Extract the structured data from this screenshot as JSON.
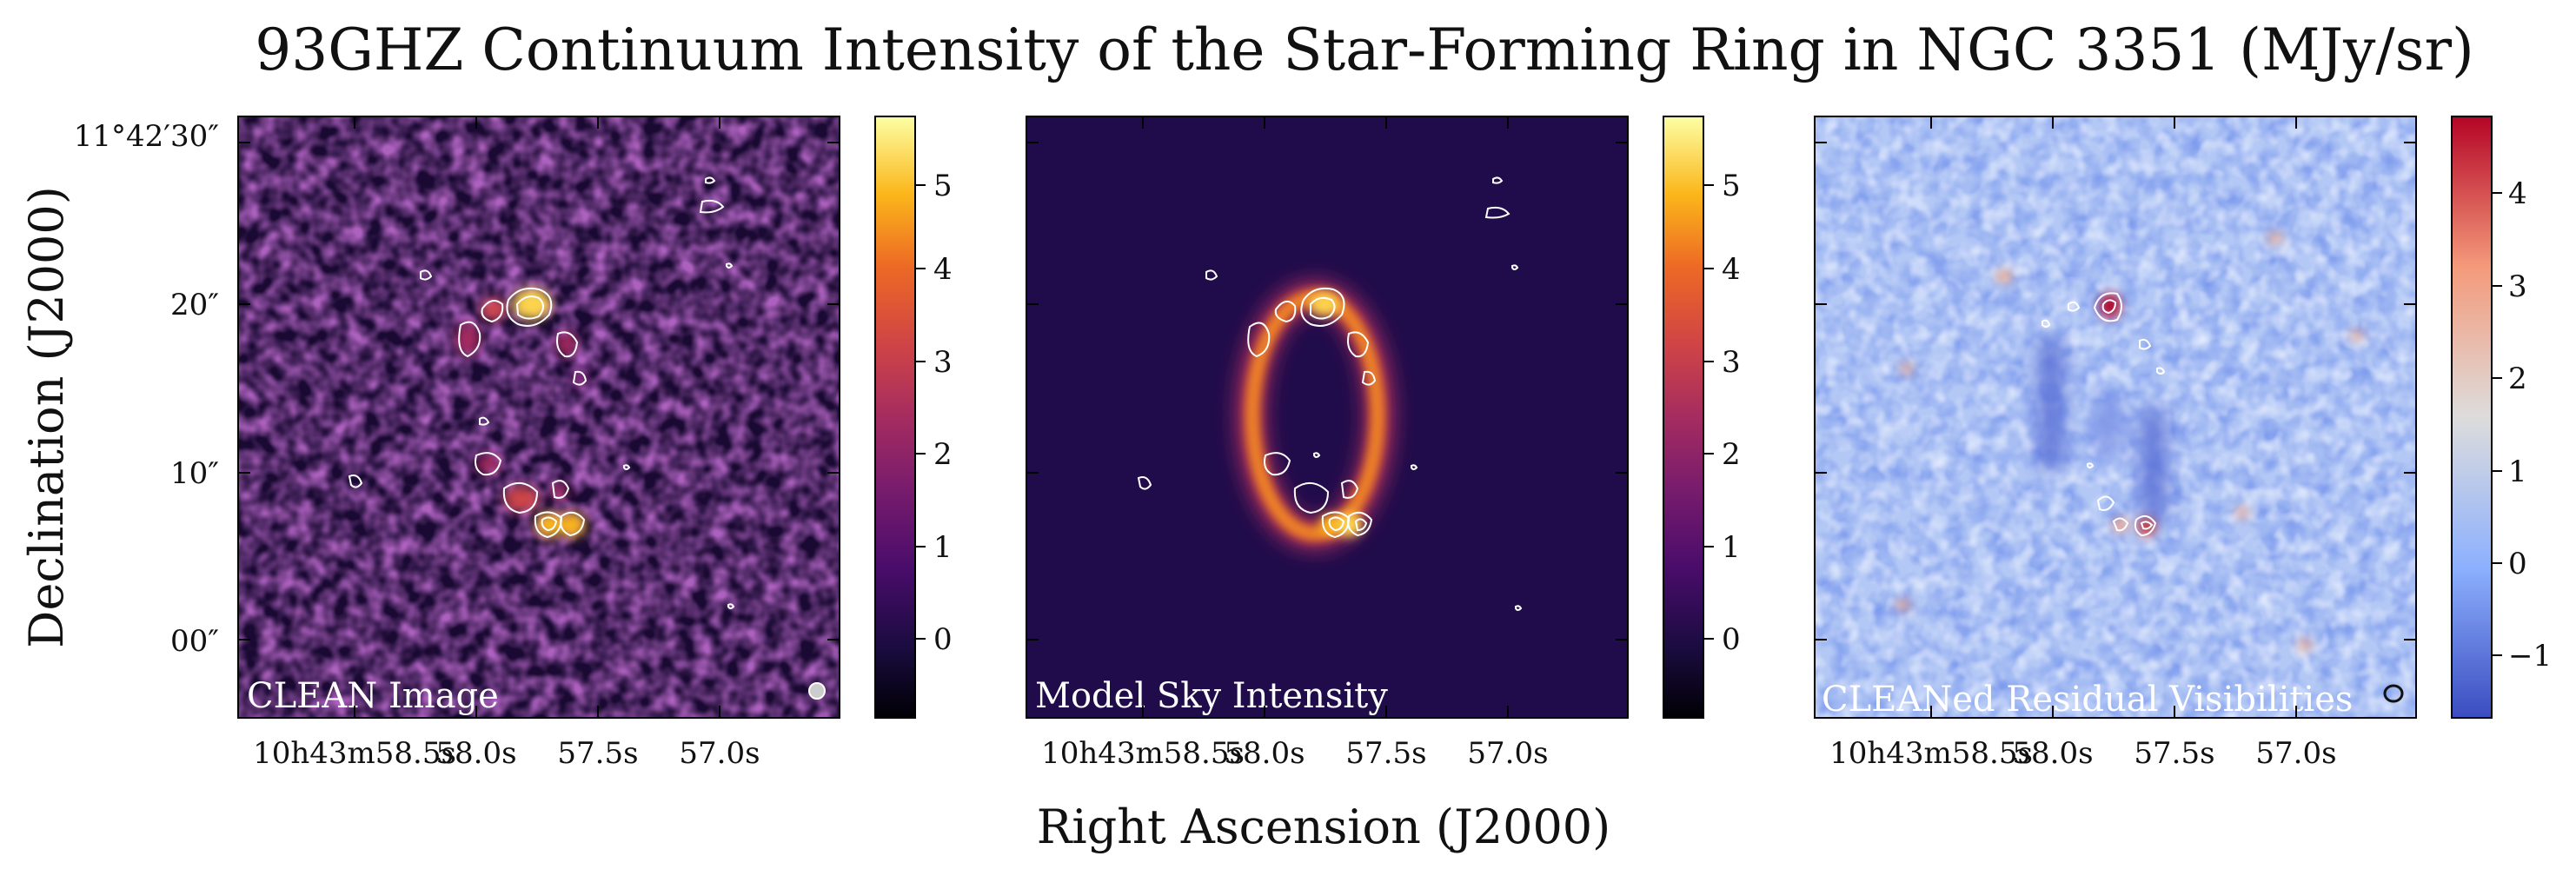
{
  "title": "93GHZ Continuum Intensity of the Star-Forming Ring in NGC 3351 (MJy/sr)",
  "xlabel": "Right Ascension (J2000)",
  "ylabel": "Declination (J2000)",
  "ra_ticks": [
    "10h43m58.5s",
    "58.0s",
    "57.5s",
    "57.0s"
  ],
  "dec_ticks": [
    "11°42′30″",
    "20″",
    "10″",
    "00″"
  ],
  "chart_data": [
    {
      "type": "heatmap",
      "label": "CLEAN Image",
      "colormap": "inferno",
      "colorbar_range": [
        -0.8,
        5.7
      ],
      "colorbar_ticks": [
        "0",
        "1",
        "2",
        "3",
        "4",
        "5"
      ],
      "beam_marker": true,
      "contours": true
    },
    {
      "type": "heatmap",
      "label": "Model Sky Intensity",
      "colormap": "inferno",
      "colorbar_range": [
        -0.8,
        5.7
      ],
      "colorbar_ticks": [
        "0",
        "1",
        "2",
        "3",
        "4",
        "5"
      ],
      "beam_marker": false,
      "contours": true
    },
    {
      "type": "heatmap",
      "label": "CLEANed Residual Visibilities",
      "colormap": "coolwarm",
      "colorbar_range": [
        -1.7,
        4.9
      ],
      "colorbar_ticks": [
        "−1",
        "0",
        "1",
        "2",
        "3",
        "4"
      ],
      "beam_marker": true,
      "contours": true
    }
  ]
}
